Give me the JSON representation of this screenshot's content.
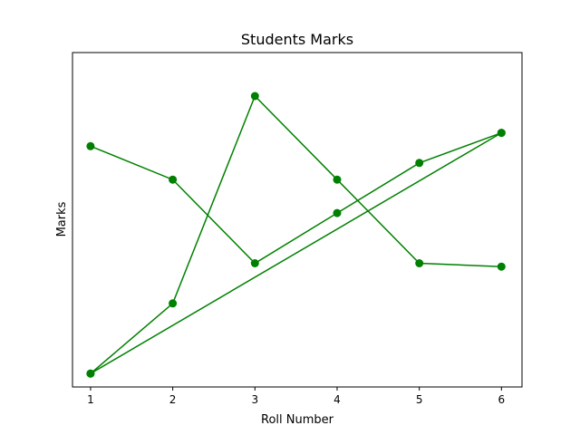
{
  "chart_data": {
    "type": "line",
    "title": "Students Marks",
    "xlabel": "Roll Number",
    "ylabel": "Marks",
    "x_ticks": [
      "1",
      "2",
      "3",
      "4",
      "5",
      "6"
    ],
    "xlim": [
      0.78,
      6.25
    ],
    "ylim": [
      0,
      100
    ],
    "grid": false,
    "color": "#008000",
    "series": [
      {
        "x": [
          1,
          2,
          3,
          4,
          5,
          6
        ],
        "y": [
          72,
          62,
          37,
          52,
          67,
          76
        ]
      },
      {
        "x": [
          6,
          1
        ],
        "y": [
          76,
          4
        ]
      },
      {
        "x": [
          1,
          2,
          3,
          4,
          5,
          6
        ],
        "y": [
          4,
          25,
          87,
          62,
          37,
          36
        ]
      }
    ]
  }
}
